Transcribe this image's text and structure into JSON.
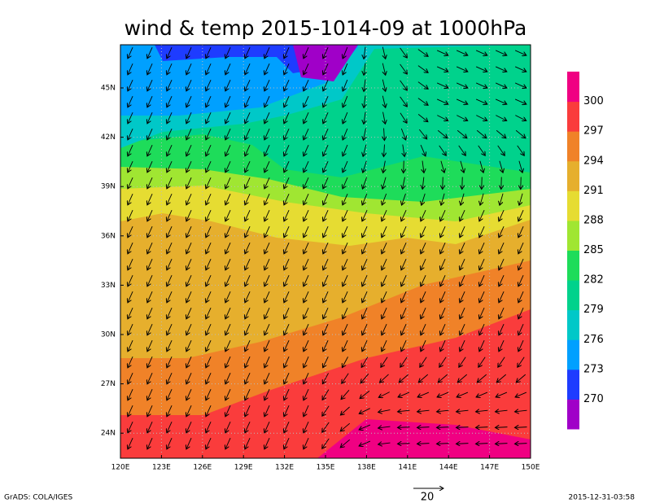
{
  "title": "wind & temp 2015-1014-09 at 1000hPa",
  "map": {
    "lon_labels": [
      "120E",
      "123E",
      "126E",
      "129E",
      "132E",
      "135E",
      "138E",
      "141E",
      "144E",
      "147E",
      "150E"
    ],
    "lat_labels": [
      "45N",
      "42N",
      "39N",
      "36N",
      "33N",
      "30N",
      "27N",
      "24N"
    ]
  },
  "colorbar": {
    "levels": [
      270,
      273,
      276,
      279,
      282,
      285,
      288,
      291,
      294,
      297,
      300
    ],
    "colors": [
      "#a000c8",
      "#1e3cff",
      "#00a0ff",
      "#00c8c8",
      "#00d28c",
      "#1edc5a",
      "#a0e632",
      "#e6dc32",
      "#e6af2d",
      "#f08228",
      "#fa3c3c",
      "#f00082"
    ]
  },
  "reference_vector": {
    "label": "20"
  },
  "footer": {
    "left": "GrADS: COLA/IGES",
    "right": "2015-12-31-03:58"
  }
}
